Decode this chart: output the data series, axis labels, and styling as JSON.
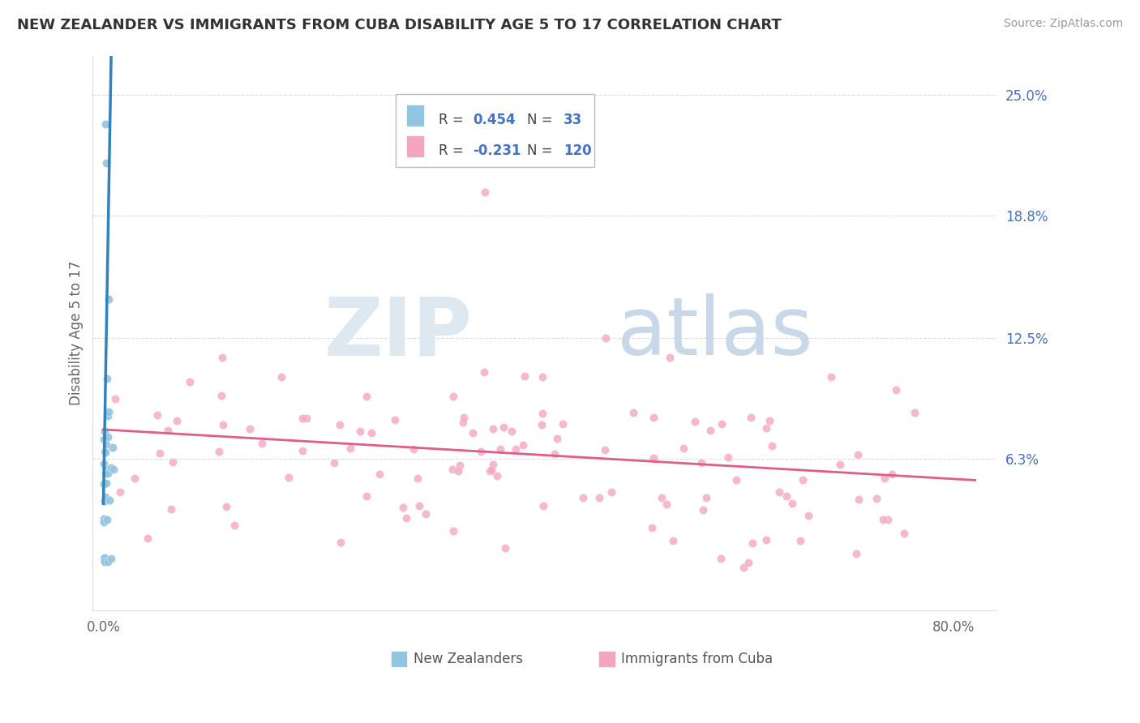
{
  "title": "NEW ZEALANDER VS IMMIGRANTS FROM CUBA DISABILITY AGE 5 TO 17 CORRELATION CHART",
  "source": "Source: ZipAtlas.com",
  "ylabel": "Disability Age 5 to 17",
  "right_ytick_vals": [
    0.0,
    0.063,
    0.125,
    0.188,
    0.25
  ],
  "right_ytick_labels": [
    "",
    "6.3%",
    "12.5%",
    "18.8%",
    "25.0%"
  ],
  "blue_color": "#92c5de",
  "pink_color": "#f4a6c0",
  "trend_blue": "#3182bd",
  "trend_pink": "#e05c8a",
  "title_color": "#333333",
  "source_color": "#999999",
  "tick_color": "#4472c4",
  "label_color": "#666666",
  "grid_color": "#dddddd",
  "xlim_min": -0.01,
  "xlim_max": 0.84,
  "ylim_min": -0.015,
  "ylim_max": 0.27,
  "nz_seed": 12,
  "cuba_seed": 7
}
